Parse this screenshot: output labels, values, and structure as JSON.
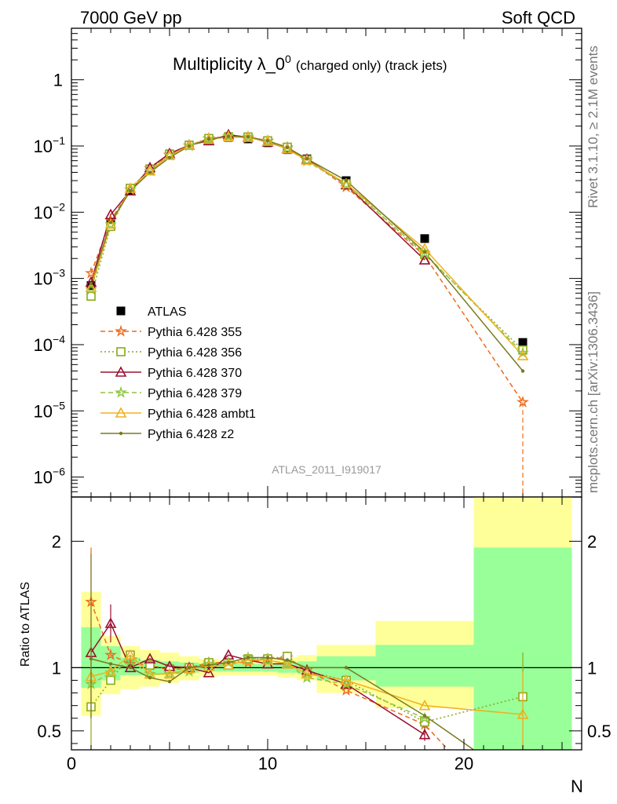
{
  "header": {
    "left": "7000 GeV pp",
    "right": "Soft QCD"
  },
  "side_text": {
    "top": "Rivet 3.1.10, ≥ 2.1M events",
    "bottom": "mcplots.cern.ch [arXiv:1306.3436]"
  },
  "analysis_label": "ATLAS_2011_I919017",
  "colors": {
    "atlas": "#000000",
    "p355": "#ee6a1c",
    "p356": "#8aaa1a",
    "p370": "#9a1030",
    "p379": "#8cc63f",
    "ambt1": "#f0b020",
    "z2": "#7a7a20",
    "band_green": "#99ff99",
    "band_yellow": "#ffff99"
  },
  "chart_data": [
    {
      "type": "line",
      "title_main": "Multiplicity λ_0",
      "title_sup": "0",
      "title_sub": "(charged only) (track jets)",
      "xlabel": "",
      "ylabel": "",
      "xlim": [
        0,
        26
      ],
      "ylim": [
        5e-07,
        6
      ],
      "yscale": "log",
      "ytick_labels": [
        {
          "value": 1,
          "base": "1",
          "exp": ""
        },
        {
          "value": 0.1,
          "base": "10",
          "exp": "−1"
        },
        {
          "value": 0.01,
          "base": "10",
          "exp": "−2"
        },
        {
          "value": 0.001,
          "base": "10",
          "exp": "−3"
        },
        {
          "value": 0.0001,
          "base": "10",
          "exp": "−4"
        },
        {
          "value": 1e-05,
          "base": "10",
          "exp": "−5"
        },
        {
          "value": 1e-06,
          "base": "10",
          "exp": "−6"
        }
      ],
      "legend_position": "middle-left",
      "series": [
        {
          "key": "atlas",
          "name": "ATLAS",
          "style": "marker",
          "x": [
            1,
            2,
            3,
            4,
            5,
            6,
            7,
            8,
            9,
            10,
            11,
            12,
            14,
            18,
            23
          ],
          "y": [
            0.00078,
            0.0068,
            0.021,
            0.044,
            0.076,
            0.103,
            0.125,
            0.135,
            0.128,
            0.112,
            0.088,
            0.064,
            0.03,
            0.004,
            0.000108
          ]
        },
        {
          "key": "p355",
          "name": "Pythia 6.428 355",
          "style": "dashed",
          "marker": "star",
          "x": [
            1,
            2,
            3,
            4,
            5,
            6,
            7,
            8,
            9,
            10,
            11,
            12,
            14,
            18,
            23
          ],
          "y": [
            0.0012,
            0.0075,
            0.022,
            0.046,
            0.074,
            0.102,
            0.13,
            0.14,
            0.133,
            0.12,
            0.095,
            0.063,
            0.024,
            0.0022,
            1.35e-05
          ]
        },
        {
          "key": "p356",
          "name": "Pythia 6.428 356",
          "style": "dotted",
          "marker": "square",
          "x": [
            1,
            2,
            3,
            4,
            5,
            6,
            7,
            8,
            9,
            10,
            11,
            12,
            14,
            18,
            23
          ],
          "y": [
            0.00054,
            0.0061,
            0.023,
            0.045,
            0.075,
            0.103,
            0.13,
            0.138,
            0.137,
            0.12,
            0.096,
            0.062,
            0.027,
            0.0023,
            8.3e-05
          ]
        },
        {
          "key": "p370",
          "name": "Pythia 6.428 370",
          "style": "solid",
          "marker": "triangle",
          "x": [
            1,
            2,
            3,
            4,
            5,
            6,
            7,
            8,
            9,
            10,
            11,
            12,
            14,
            18
          ],
          "y": [
            0.00088,
            0.0092,
            0.021,
            0.047,
            0.077,
            0.103,
            0.12,
            0.148,
            0.136,
            0.115,
            0.091,
            0.063,
            0.026,
            0.0019
          ]
        },
        {
          "key": "p379",
          "name": "Pythia 6.428 379",
          "style": "dashed",
          "marker": "star",
          "x": [
            1,
            2,
            3,
            4,
            5,
            6,
            7,
            8,
            9,
            10,
            11,
            12,
            14,
            18,
            23
          ],
          "y": [
            0.00068,
            0.0065,
            0.022,
            0.042,
            0.072,
            0.1,
            0.128,
            0.14,
            0.138,
            0.118,
            0.091,
            0.059,
            0.026,
            0.0024,
            7.5e-05
          ]
        },
        {
          "key": "ambt1",
          "name": "Pythia 6.428 ambt1",
          "style": "solid",
          "marker": "triangle",
          "x": [
            1,
            2,
            3,
            4,
            5,
            6,
            7,
            8,
            9,
            10,
            11,
            12,
            14,
            18,
            23
          ],
          "y": [
            0.00073,
            0.0066,
            0.023,
            0.042,
            0.072,
            0.102,
            0.126,
            0.138,
            0.135,
            0.118,
            0.09,
            0.061,
            0.027,
            0.0028,
            6.8e-05
          ]
        },
        {
          "key": "z2",
          "name": "Pythia 6.428 z2",
          "style": "solid",
          "marker": "dot",
          "x": [
            1,
            2,
            3,
            4,
            5,
            6,
            7,
            8,
            9,
            10,
            11,
            12,
            14,
            18,
            23
          ],
          "y": [
            0.00084,
            0.007,
            0.021,
            0.04,
            0.067,
            0.1,
            0.127,
            0.14,
            0.138,
            0.12,
            0.095,
            0.064,
            0.03,
            0.0025,
            4e-05
          ]
        }
      ]
    },
    {
      "type": "line",
      "xlabel": "N",
      "ylabel": "Ratio to ATLAS",
      "xlim": [
        0,
        26
      ],
      "ylim": [
        0.35,
        2.35
      ],
      "xticks": [
        0,
        10,
        20
      ],
      "yticks": [
        0.5,
        1,
        2
      ],
      "reference_line": 1,
      "bands": [
        {
          "x0": 0.5,
          "x1": 1.5,
          "g": [
            0.84,
            1.32
          ],
          "y": [
            0.62,
            1.6
          ]
        },
        {
          "x0": 1.5,
          "x1": 2.5,
          "g": [
            0.9,
            1.17
          ],
          "y": [
            0.79,
            1.25
          ]
        },
        {
          "x0": 2.5,
          "x1": 3.5,
          "g": [
            0.94,
            1.08
          ],
          "y": [
            0.83,
            1.17
          ]
        },
        {
          "x0": 3.5,
          "x1": 4.5,
          "g": [
            0.94,
            1.06
          ],
          "y": [
            0.85,
            1.14
          ]
        },
        {
          "x0": 4.5,
          "x1": 5.5,
          "g": [
            0.95,
            1.05
          ],
          "y": [
            0.88,
            1.12
          ]
        },
        {
          "x0": 5.5,
          "x1": 6.5,
          "g": [
            0.96,
            1.04
          ],
          "y": [
            0.9,
            1.09
          ]
        },
        {
          "x0": 6.5,
          "x1": 7.5,
          "g": [
            0.97,
            1.03
          ],
          "y": [
            0.93,
            1.07
          ]
        },
        {
          "x0": 7.5,
          "x1": 8.5,
          "g": [
            0.97,
            1.03
          ],
          "y": [
            0.94,
            1.06
          ]
        },
        {
          "x0": 8.5,
          "x1": 9.5,
          "g": [
            0.97,
            1.03
          ],
          "y": [
            0.94,
            1.06
          ]
        },
        {
          "x0": 9.5,
          "x1": 10.5,
          "g": [
            0.97,
            1.03
          ],
          "y": [
            0.94,
            1.06
          ]
        },
        {
          "x0": 10.5,
          "x1": 11.5,
          "g": [
            0.96,
            1.04
          ],
          "y": [
            0.92,
            1.08
          ]
        },
        {
          "x0": 11.5,
          "x1": 12.5,
          "g": [
            0.95,
            1.05
          ],
          "y": [
            0.9,
            1.1
          ]
        },
        {
          "x0": 12.5,
          "x1": 15.5,
          "g": [
            0.9,
            1.09
          ],
          "y": [
            0.8,
            1.18
          ]
        },
        {
          "x0": 15.5,
          "x1": 20.5,
          "g": [
            0.85,
            1.18
          ],
          "y": [
            0.68,
            1.37
          ]
        },
        {
          "x0": 20.5,
          "x1": 25.5,
          "g": [
            0.35,
            1.95
          ],
          "y": [
            0.35,
            2.35
          ]
        }
      ],
      "series": [
        {
          "key": "p355",
          "x": [
            1,
            2,
            3,
            4,
            5,
            6,
            7,
            8,
            9,
            10,
            11,
            12,
            14,
            18,
            19.2
          ],
          "y": [
            1.52,
            1.1,
            1.03,
            1.02,
            0.98,
            1.0,
            1.04,
            1.04,
            1.04,
            1.07,
            1.08,
            0.98,
            0.82,
            0.55,
            0.35
          ]
        },
        {
          "key": "p356",
          "x": [
            1,
            2,
            3,
            4,
            5,
            6,
            7,
            8,
            9,
            10,
            11,
            12,
            14,
            18,
            23
          ],
          "y": [
            0.69,
            0.9,
            1.1,
            1.02,
            0.99,
            1.0,
            1.04,
            1.02,
            1.07,
            1.07,
            1.09,
            0.97,
            0.9,
            0.57,
            0.77
          ]
        },
        {
          "key": "p370",
          "x": [
            1,
            2,
            3,
            4,
            5,
            6,
            7,
            8,
            9,
            10,
            11,
            12,
            14,
            18
          ],
          "y": [
            1.12,
            1.35,
            1.0,
            1.07,
            1.01,
            1.0,
            0.96,
            1.1,
            1.06,
            1.03,
            1.03,
            0.98,
            0.87,
            0.47
          ]
        },
        {
          "key": "p379",
          "x": [
            1,
            2,
            3,
            4,
            5,
            6,
            7,
            8,
            9,
            10,
            11,
            12,
            14,
            18
          ],
          "y": [
            0.87,
            0.96,
            1.05,
            0.95,
            0.95,
            0.97,
            1.03,
            1.04,
            1.08,
            1.06,
            1.03,
            0.92,
            0.87,
            0.6
          ]
        },
        {
          "key": "ambt1",
          "x": [
            1,
            2,
            3,
            4,
            5,
            6,
            7,
            8,
            9,
            10,
            11,
            12,
            14,
            18,
            23
          ],
          "y": [
            0.93,
            0.97,
            1.1,
            0.95,
            0.95,
            0.99,
            1.01,
            1.02,
            1.06,
            1.06,
            1.03,
            0.95,
            0.9,
            0.7,
            0.63
          ]
        },
        {
          "key": "z2",
          "x": [
            1,
            2,
            3,
            4,
            5,
            6,
            7,
            8,
            9,
            10,
            11,
            12,
            14,
            18,
            20.5
          ],
          "y": [
            1.07,
            1.03,
            1.0,
            0.92,
            0.89,
            1.0,
            1.02,
            1.04,
            1.08,
            1.08,
            1.06,
            1.0,
            1.0,
            0.62,
            0.35
          ]
        }
      ]
    }
  ]
}
